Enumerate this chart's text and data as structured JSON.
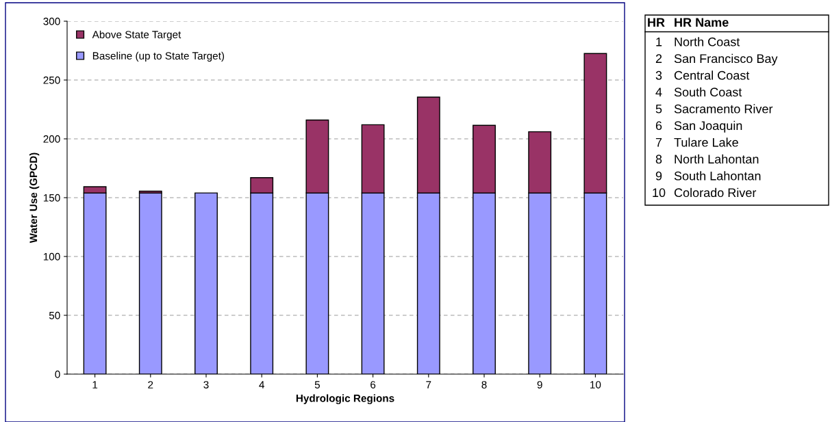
{
  "chart_data": {
    "type": "bar",
    "stacked": true,
    "xlabel": "Hydrologic Regions",
    "ylabel": "Water Use (GPCD)",
    "categories": [
      "1",
      "2",
      "3",
      "4",
      "5",
      "6",
      "7",
      "8",
      "9",
      "10"
    ],
    "series": [
      {
        "name": "Baseline (up to State Target)",
        "color": "#9999ff",
        "values": [
          154,
          154,
          154,
          154,
          154,
          154,
          154,
          154,
          154,
          154
        ]
      },
      {
        "name": "Above State Target",
        "color": "#993366",
        "values": [
          5.3,
          1.5,
          0,
          13,
          62,
          58,
          81.5,
          57.5,
          52,
          118.5
        ]
      }
    ],
    "ylim": [
      0,
      300
    ],
    "yticks": [
      0,
      50,
      100,
      150,
      200,
      250,
      300
    ],
    "grid": "y",
    "legend": "top left",
    "annotations": [
      "HR",
      "HR Name",
      "1",
      "North Coast",
      "2",
      "San Francisco Bay",
      "3",
      "Central Coast",
      "4",
      "South Coast",
      "5",
      "Sacramento River",
      "6",
      "San Joaquin",
      "7",
      "Tulare Lake",
      "8",
      "North Lahontan",
      "9",
      "South Lahontan",
      "10",
      "Colorado River"
    ]
  }
}
